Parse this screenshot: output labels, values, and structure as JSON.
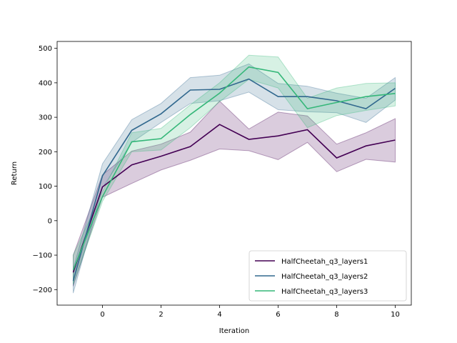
{
  "chart_data": {
    "type": "line",
    "title": "",
    "xlabel": "Iteration",
    "ylabel": "Return",
    "xlim": [
      -1.55,
      10.55
    ],
    "ylim": [
      -245,
      520
    ],
    "xticks": [
      0,
      2,
      4,
      6,
      8,
      10
    ],
    "yticks": [
      -200,
      -100,
      0,
      100,
      200,
      300,
      400,
      500
    ],
    "ytick_labels": [
      "−200",
      "−100",
      "0",
      "100",
      "200",
      "300",
      "400",
      "500"
    ],
    "grid": false,
    "legend_position": "bottom-right",
    "x": [
      -1,
      0,
      1,
      2,
      3,
      4,
      5,
      6,
      7,
      8,
      9,
      10
    ],
    "series": [
      {
        "name": "HalfCheetah_q3_layers1",
        "color": "#440154",
        "values": [
          -150,
          98,
          162,
          187,
          215,
          279,
          236,
          246,
          264,
          182,
          217,
          234
        ],
        "lower": [
          -190,
          68,
          108,
          147,
          175,
          208,
          203,
          177,
          227,
          142,
          178,
          170
        ],
        "upper": [
          -100,
          133,
          202,
          222,
          257,
          347,
          266,
          315,
          304,
          222,
          255,
          296
        ]
      },
      {
        "name": "HalfCheetah_q3_layers2",
        "color": "#31688e",
        "values": [
          -175,
          130,
          262,
          310,
          379,
          381,
          411,
          360,
          360,
          348,
          325,
          384
        ],
        "lower": [
          -210,
          95,
          227,
          285,
          340,
          348,
          373,
          322,
          316,
          313,
          285,
          350
        ],
        "upper": [
          -140,
          165,
          293,
          340,
          415,
          422,
          455,
          398,
          390,
          370,
          355,
          415
        ]
      },
      {
        "name": "HalfCheetah_q3_layers3",
        "color": "#35b779",
        "values": [
          -143,
          70,
          229,
          238,
          308,
          370,
          446,
          430,
          325,
          343,
          360,
          369
        ],
        "lower": [
          -185,
          56,
          200,
          205,
          270,
          345,
          410,
          385,
          270,
          305,
          320,
          333
        ],
        "upper": [
          -100,
          84,
          255,
          268,
          336,
          400,
          480,
          475,
          355,
          385,
          398,
          400
        ]
      }
    ]
  }
}
